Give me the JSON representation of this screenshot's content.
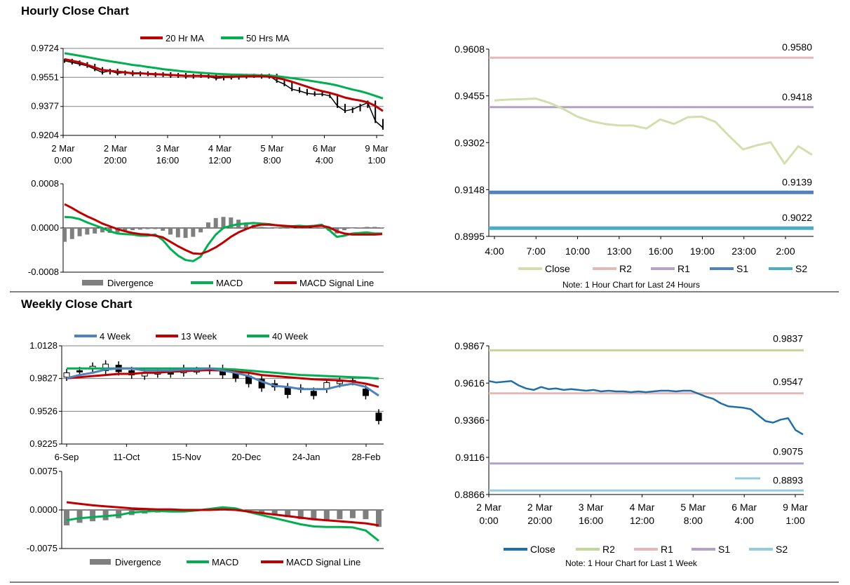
{
  "sections": {
    "hourly_title": "Hourly Close Chart",
    "weekly_title": "Weekly Close Chart"
  },
  "colors": {
    "ma_red": "#c00000",
    "ma_green": "#00b050",
    "price_black": "#000000",
    "gray_bar": "#7f7f7f",
    "close_light": "#d2dfad",
    "r2_pink": "#e6b9b8",
    "r1_lavender": "#b3a2c7",
    "s1_blue": "#4f81bd",
    "s2_teal": "#4bacc6",
    "weekly_close_blue": "#1f6fa8",
    "w4_blue": "#4f81bd",
    "weekly_r2_green": "#c3d69b",
    "weekly_s2_lightblue": "#93cddd"
  },
  "chart_data": [
    {
      "id": "hourly-price",
      "type": "line",
      "legend": [
        "20 Hr MA",
        "50 Hrs MA"
      ],
      "y_ticks": [
        "0.9724",
        "0.9551",
        "0.9377",
        "0.9204"
      ],
      "ylim": [
        0.9204,
        0.9724
      ],
      "x_tick_labels": [
        [
          "2 Mar",
          "0:00"
        ],
        [
          "2 Mar",
          "20:00"
        ],
        [
          "3 Mar",
          "16:00"
        ],
        [
          "4 Mar",
          "12:00"
        ],
        [
          "5 Mar",
          "8:00"
        ],
        [
          "6 Mar",
          "4:00"
        ],
        [
          "9 Mar",
          "1:00"
        ]
      ],
      "series": [
        {
          "name": "Price",
          "values": [
            0.965,
            0.964,
            0.963,
            0.962,
            0.96,
            0.958,
            0.959,
            0.9575,
            0.958,
            0.957,
            0.9575,
            0.957,
            0.9565,
            0.957,
            0.956,
            0.9565,
            0.9555,
            0.956,
            0.956,
            0.9555,
            0.9545,
            0.955,
            0.955,
            0.9555,
            0.956,
            0.956,
            0.9555,
            0.956,
            0.953,
            0.951,
            0.948,
            0.947,
            0.9455,
            0.945,
            0.945,
            0.944,
            0.938,
            0.935,
            0.936,
            0.938,
            0.94,
            0.929,
            0.925
          ]
        },
        {
          "name": "20 Hr MA",
          "values": [
            0.966,
            0.965,
            0.964,
            0.9625,
            0.961,
            0.9595,
            0.959,
            0.9585,
            0.958,
            0.9575,
            0.9575,
            0.9572,
            0.957,
            0.9568,
            0.9565,
            0.9563,
            0.956,
            0.956,
            0.956,
            0.9558,
            0.9556,
            0.9555,
            0.9555,
            0.9556,
            0.9557,
            0.9558,
            0.9558,
            0.9555,
            0.9548,
            0.9538,
            0.9525,
            0.951,
            0.9495,
            0.948,
            0.9468,
            0.9458,
            0.9445,
            0.943,
            0.942,
            0.9412,
            0.9402,
            0.938,
            0.935
          ]
        },
        {
          "name": "50 Hrs MA",
          "values": [
            0.9695,
            0.9688,
            0.968,
            0.9672,
            0.9663,
            0.9655,
            0.9647,
            0.964,
            0.9633,
            0.9625,
            0.962,
            0.9613,
            0.9607,
            0.96,
            0.9595,
            0.959,
            0.9585,
            0.9582,
            0.9578,
            0.9575,
            0.9572,
            0.957,
            0.9568,
            0.9567,
            0.9565,
            0.9565,
            0.9563,
            0.9562,
            0.9558,
            0.9552,
            0.9546,
            0.954,
            0.9533,
            0.9526,
            0.9519,
            0.9512,
            0.9502,
            0.949,
            0.9478,
            0.9468,
            0.9455,
            0.944,
            0.9425
          ]
        }
      ]
    },
    {
      "id": "hourly-macd",
      "type": "bar",
      "legend": [
        "Divergence",
        "MACD",
        "MACD Signal Line"
      ],
      "y_ticks": [
        "0.0008",
        "0.0000",
        "-0.0008"
      ],
      "ylim": [
        -0.0008,
        0.0008
      ],
      "series": [
        {
          "name": "MACD",
          "values": [
            0.0002,
            0.00019,
            0.00016,
            0.0001,
            5e-05,
            0.0,
            -6e-05,
            -0.0001,
            -0.00011,
            -0.00012,
            -0.00014,
            -0.00014,
            -0.00012,
            -0.00022,
            -0.00038,
            -0.0005,
            -0.00058,
            -0.0006,
            -0.00052,
            -0.0003,
            -0.00012,
            0.0,
            4e-05,
            7e-05,
            8e-05,
            9e-05,
            8e-05,
            7e-05,
            5e-05,
            3e-05,
            3e-05,
            4e-05,
            3e-05,
            4e-05,
            6e-05,
            -4e-05,
            -0.00016,
            -0.00014,
            -0.0001,
            -9e-05,
            -8e-05,
            -0.0001,
            -0.0001
          ]
        },
        {
          "name": "MACD Signal Line",
          "values": [
            0.00043,
            0.00036,
            0.00028,
            0.00021,
            0.00015,
            8e-05,
            3e-05,
            -2e-05,
            -6e-05,
            -9e-05,
            -0.00011,
            -0.00012,
            -0.00014,
            -0.00017,
            -0.00025,
            -0.00033,
            -0.0004,
            -0.00046,
            -0.00047,
            -0.00042,
            -0.00035,
            -0.00026,
            -0.00016,
            -8e-05,
            -2e-05,
            3e-05,
            6e-05,
            6e-05,
            5e-05,
            4e-05,
            3e-05,
            2e-05,
            2e-05,
            3e-05,
            4e-05,
            1e-05,
            -6e-05,
            -0.0001,
            -0.00012,
            -0.00012,
            -0.00012,
            -0.00012,
            -0.00011
          ]
        },
        {
          "name": "Divergence",
          "values": [
            -0.00025,
            -0.0002,
            -0.00015,
            -0.00012,
            -0.0001,
            -8e-05,
            -9e-05,
            -8e-05,
            -6e-05,
            -4e-05,
            -3e-05,
            -2e-05,
            -2e-05,
            -5e-05,
            -0.00012,
            -0.00017,
            -0.00018,
            -0.00016,
            -8e-05,
            0.0001,
            0.00018,
            0.0002,
            0.00019,
            0.00015,
            0.0001,
            6e-05,
            2e-05,
            1e-05,
            0.0,
            -1e-05,
            0.0,
            2e-05,
            1e-05,
            1e-05,
            1e-05,
            -5e-05,
            -0.0001,
            -4e-05,
            0.0,
            1e-05,
            2e-05,
            2e-05,
            1e-05
          ]
        }
      ]
    },
    {
      "id": "hourly-levels",
      "type": "line",
      "note": "Note: 1 Hour Chart for Last 24 Hours",
      "legend": [
        "Close",
        "R2",
        "R1",
        "S1",
        "S2"
      ],
      "y_ticks": [
        "0.9608",
        "0.9455",
        "0.9302",
        "0.9148",
        "0.8995"
      ],
      "ylim": [
        0.8995,
        0.9608
      ],
      "x_ticks": [
        "4:00",
        "7:00",
        "10:00",
        "13:00",
        "16:00",
        "19:00",
        "23:00",
        "2:00"
      ],
      "series": [
        {
          "name": "Close",
          "values": [
            0.944,
            0.9443,
            0.9444,
            0.9446,
            0.9432,
            0.9412,
            0.9387,
            0.9372,
            0.9363,
            0.9358,
            0.9358,
            0.9348,
            0.9378,
            0.9363,
            0.9385,
            0.9387,
            0.937,
            0.9323,
            0.928,
            0.9293,
            0.9303,
            0.9233,
            0.929,
            0.9262
          ]
        },
        {
          "name": "R2",
          "values": [
            0.958
          ]
        },
        {
          "name": "R1",
          "values": [
            0.9418
          ]
        },
        {
          "name": "S1",
          "values": [
            0.9139
          ]
        },
        {
          "name": "S2",
          "values": [
            0.9022
          ]
        }
      ],
      "level_labels": [
        "0.9580",
        "0.9418",
        "0.9139",
        "0.9022"
      ]
    },
    {
      "id": "weekly-price",
      "type": "line",
      "legend": [
        "4 Week",
        "13 Week",
        "40 Week"
      ],
      "y_ticks": [
        "1.0128",
        "0.9827",
        "0.9526",
        "0.9225"
      ],
      "ylim": [
        0.9225,
        1.0128
      ],
      "x_ticks": [
        "6-Sep",
        "11-Oct",
        "15-Nov",
        "20-Dec",
        "24-Jan",
        "28-Feb"
      ],
      "series": [
        {
          "name": "Open",
          "values": [
            0.984,
            0.99,
            0.992,
            0.99,
            0.995,
            0.99,
            0.985,
            0.987,
            0.988,
            0.988,
            0.99,
            0.99,
            0.992,
            0.988,
            0.985,
            0.982,
            0.978,
            0.975,
            0.973,
            0.971,
            0.973,
            0.978,
            0.98,
            0.973,
            0.951
          ]
        },
        {
          "name": "Close",
          "values": [
            0.988,
            0.989,
            0.994,
            0.996,
            0.989,
            0.986,
            0.988,
            0.988,
            0.987,
            0.992,
            0.99,
            0.992,
            0.986,
            0.983,
            0.978,
            0.974,
            0.975,
            0.968,
            0.974,
            0.967,
            0.979,
            0.98,
            0.981,
            0.967,
            0.944
          ]
        },
        {
          "name": "4 Week",
          "values": [
            0.983,
            0.986,
            0.988,
            0.991,
            0.992,
            0.992,
            0.99,
            0.99,
            0.99,
            0.991,
            0.991,
            0.992,
            0.99,
            0.988,
            0.985,
            0.98,
            0.976,
            0.975,
            0.973,
            0.973,
            0.973,
            0.976,
            0.978,
            0.975,
            0.967
          ]
        },
        {
          "name": "13 Week",
          "values": [
            0.983,
            0.984,
            0.985,
            0.986,
            0.987,
            0.987,
            0.988,
            0.988,
            0.989,
            0.9895,
            0.99,
            0.9905,
            0.99,
            0.989,
            0.988,
            0.986,
            0.985,
            0.984,
            0.983,
            0.982,
            0.9815,
            0.981,
            0.98,
            0.978,
            0.975
          ]
        },
        {
          "name": "40 Week",
          "values": [
            0.992,
            0.992,
            0.992,
            0.992,
            0.992,
            0.992,
            0.992,
            0.992,
            0.992,
            0.992,
            0.992,
            0.992,
            0.9915,
            0.991,
            0.99,
            0.989,
            0.988,
            0.987,
            0.986,
            0.9855,
            0.985,
            0.9845,
            0.984,
            0.9835,
            0.9827
          ]
        }
      ]
    },
    {
      "id": "weekly-macd",
      "type": "bar",
      "legend": [
        "Divergence",
        "MACD",
        "MACD Signal Line"
      ],
      "y_ticks": [
        "0.0075",
        "0.0000",
        "-0.0075"
      ],
      "ylim": [
        -0.0075,
        0.0075
      ],
      "series": [
        {
          "name": "MACD",
          "values": [
            -0.002,
            -0.0016,
            -0.0014,
            -0.0012,
            -0.001,
            -0.0005,
            -0.0003,
            -0.0002,
            -0.0003,
            -0.0003,
            -0.0001,
            0.0002,
            0.0005,
            0.0003,
            -0.0004,
            -0.001,
            -0.0016,
            -0.0022,
            -0.0028,
            -0.0032,
            -0.0033,
            -0.0033,
            -0.0034,
            -0.004,
            -0.006
          ]
        },
        {
          "name": "MACD Signal Line",
          "values": [
            0.0015,
            0.0012,
            0.0009,
            0.0007,
            0.0005,
            0.0003,
            0.0002,
            0.0001,
            0.0001,
            0.0,
            0.0,
            0.0,
            0.0001,
            0.0,
            -0.0003,
            -0.0006,
            -0.0009,
            -0.0012,
            -0.0015,
            -0.0018,
            -0.002,
            -0.0022,
            -0.0024,
            -0.0026,
            -0.003
          ]
        },
        {
          "name": "Divergence",
          "values": [
            -0.003,
            -0.0025,
            -0.0022,
            -0.002,
            -0.0016,
            -0.001,
            -0.0007,
            -0.0005,
            -0.0004,
            -0.0003,
            -0.0002,
            0.0,
            0.0002,
            0.0001,
            -0.0002,
            -0.0006,
            -0.001,
            -0.0014,
            -0.0018,
            -0.002,
            -0.002,
            -0.0018,
            -0.0016,
            -0.0018,
            -0.0033
          ]
        }
      ]
    },
    {
      "id": "weekly-levels",
      "type": "line",
      "note": "Note: 1 Hour Chart for Last 1 Week",
      "legend": [
        "Close",
        "R2",
        "R1",
        "S1",
        "S2"
      ],
      "y_ticks": [
        "0.9867",
        "0.9616",
        "0.9366",
        "0.9116",
        "0.8866"
      ],
      "ylim": [
        0.8866,
        0.9867
      ],
      "x_tick_labels": [
        [
          "2 Mar",
          "0:00"
        ],
        [
          "2 Mar",
          "20:00"
        ],
        [
          "3 Mar",
          "16:00"
        ],
        [
          "4 Mar",
          "12:00"
        ],
        [
          "5 Mar",
          "8:00"
        ],
        [
          "6 Mar",
          "4:00"
        ],
        [
          "9 Mar",
          "1:00"
        ]
      ],
      "series": [
        {
          "name": "Close",
          "values": [
            0.963,
            0.962,
            0.9625,
            0.963,
            0.96,
            0.958,
            0.957,
            0.959,
            0.9575,
            0.958,
            0.957,
            0.9575,
            0.957,
            0.9565,
            0.957,
            0.956,
            0.9565,
            0.956,
            0.956,
            0.9555,
            0.956,
            0.9555,
            0.956,
            0.9565,
            0.9565,
            0.956,
            0.9565,
            0.9565,
            0.9545,
            0.9525,
            0.951,
            0.948,
            0.946,
            0.9455,
            0.945,
            0.944,
            0.94,
            0.936,
            0.935,
            0.937,
            0.938,
            0.93,
            0.927
          ]
        },
        {
          "name": "R2",
          "values": [
            0.9837
          ]
        },
        {
          "name": "R1",
          "values": [
            0.9547
          ]
        },
        {
          "name": "S1",
          "values": [
            0.9075
          ]
        },
        {
          "name": "S2",
          "values": [
            0.8893
          ]
        }
      ],
      "level_labels": [
        "0.9837",
        "0.9547",
        "0.9075",
        "0.8893"
      ]
    }
  ]
}
